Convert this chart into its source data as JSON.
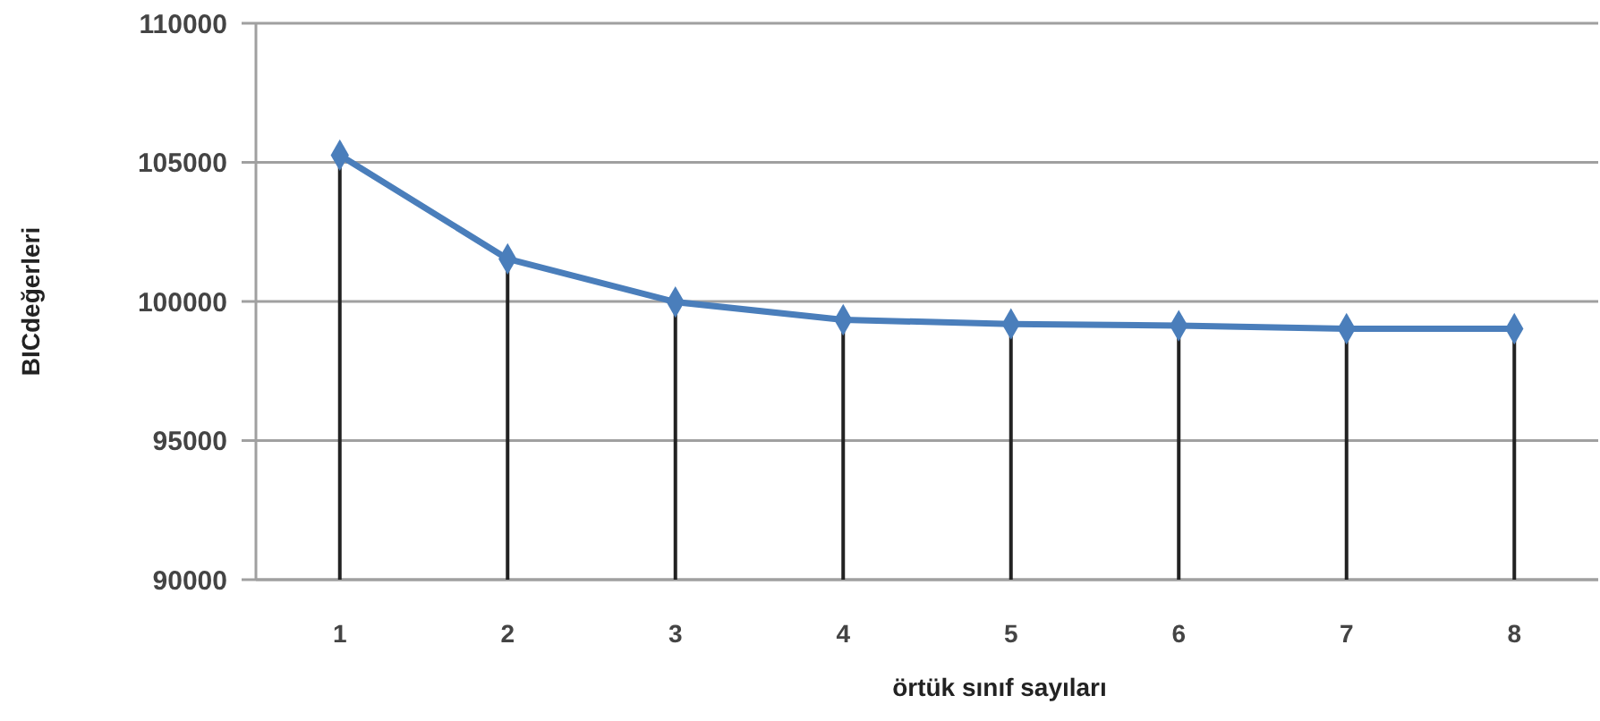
{
  "chart_data": {
    "type": "line",
    "xlabel": "örtük sınıf sayıları",
    "ylabel": "BICdeğerleri",
    "categories": [
      "1",
      "2",
      "3",
      "4",
      "5",
      "6",
      "7",
      "8"
    ],
    "series": [
      {
        "color": "#4a7ebb",
        "marker": "none",
        "values": [
          105260,
          101530,
          99980,
          99340,
          99190,
          99130,
          99020,
          99020
        ]
      },
      {
        "type": "lollipop",
        "color": "#4a7ebb",
        "marker": "diamond",
        "values": [
          105260,
          101530,
          99980,
          99340,
          99190,
          99130,
          99020,
          99020
        ]
      }
    ],
    "ylim": [
      90000,
      110000
    ],
    "yticks": [
      90000,
      95000,
      100000,
      105000,
      110000
    ],
    "grid": "y",
    "line_style": "solid"
  }
}
